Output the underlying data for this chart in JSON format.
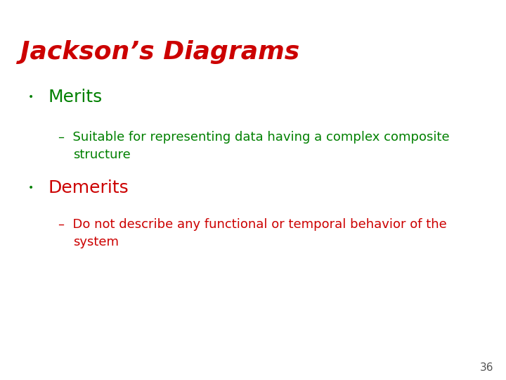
{
  "title": "Jackson’s Diagrams",
  "title_color": "#cc0000",
  "title_fontstyle": "italic",
  "title_fontweight": "bold",
  "title_fontsize": 26,
  "title_fontfamily": "sans-serif",
  "background_color": "#ffffff",
  "bullet_color": "#008000",
  "bullet1_label": "Merits",
  "bullet1_color": "#008000",
  "bullet1_fontsize": 18,
  "bullet2_label": "Demerits",
  "bullet2_color": "#cc0000",
  "bullet2_fontsize": 18,
  "sub1_line1": "–  Suitable for representing data having a complex composite",
  "sub1_line2": "    structure",
  "sub1_color": "#008000",
  "sub1_fontsize": 13,
  "sub2_line1": "–  Do not describe any functional or temporal behavior of the",
  "sub2_line2": "    system",
  "sub2_color": "#cc0000",
  "sub2_fontsize": 13,
  "page_number": "36",
  "page_number_color": "#555555",
  "page_number_fontsize": 11,
  "bullet_dot_fontsize": 10
}
